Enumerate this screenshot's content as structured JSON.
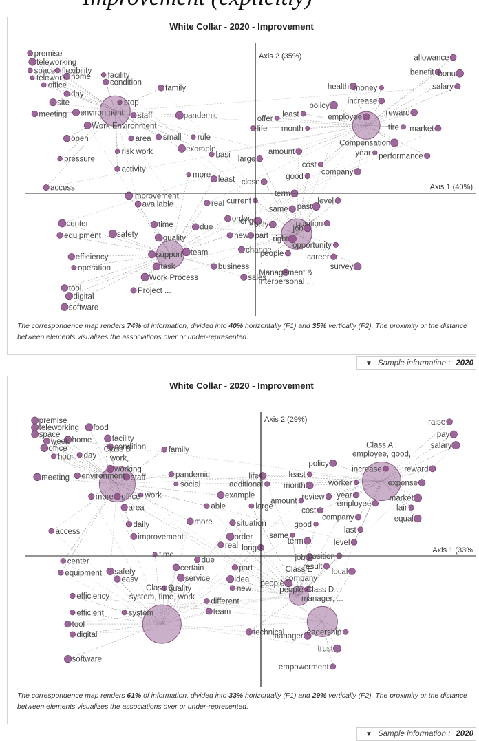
{
  "header_fragment": "Improvement (explicitly)",
  "panels": [
    {
      "caption": {
        "pre": "The correspondence map renders ",
        "total": "74%",
        "mid1": " of information, divided into ",
        "h": "40%",
        "mid2": " horizontally (F1) and ",
        "v": "35%",
        "post": " vertically (F2). The proximity or the distance between elements visualizes the associations over or under-represented."
      },
      "sample": {
        "label": "Sample information :",
        "value": "2020"
      }
    },
    {
      "caption": {
        "pre": "The correspondence map renders ",
        "total": "61%",
        "mid1": " of information, divided into ",
        "h": "33%",
        "mid2": " horizontally (F1) and ",
        "v": "29%",
        "post": " vertically (F2). The proximity or the distance between elements visualizes the associations over or under-represented."
      },
      "sample": {
        "label": "Sample information :",
        "value": "2020"
      }
    }
  ],
  "chart_data": [
    {
      "type": "scatter",
      "title": "White Collar - 2020 - Improvement",
      "xlabel": "Axis 1 (40%)",
      "ylabel": "Axis 2 (35%)",
      "xlim": [
        -1,
        1
      ],
      "ylim": [
        -1,
        1
      ],
      "grid": false,
      "classes": [
        {
          "label": "",
          "x": -0.61,
          "y": 0.57,
          "r": 22
        },
        {
          "label": "",
          "x": 0.51,
          "y": 0.47,
          "r": 20
        },
        {
          "label": "",
          "x": 0.19,
          "y": -0.34,
          "r": 22
        },
        {
          "label": "",
          "x": -0.37,
          "y": -0.51,
          "r": 20
        }
      ],
      "terms": [
        {
          "label": "premise",
          "x": -0.98,
          "y": 0.97
        },
        {
          "label": "teleworking",
          "x": -0.97,
          "y": 0.91
        },
        {
          "label": "space",
          "x": -0.98,
          "y": 0.85
        },
        {
          "label": "flexibility",
          "x": -0.86,
          "y": 0.85
        },
        {
          "label": "telework",
          "x": -0.97,
          "y": 0.8
        },
        {
          "label": "home",
          "x": -0.82,
          "y": 0.81
        },
        {
          "label": "facility",
          "x": -0.66,
          "y": 0.82
        },
        {
          "label": "condition",
          "x": -0.65,
          "y": 0.77
        },
        {
          "label": "office",
          "x": -0.92,
          "y": 0.75
        },
        {
          "label": "family",
          "x": -0.41,
          "y": 0.73
        },
        {
          "label": "day",
          "x": -0.82,
          "y": 0.69
        },
        {
          "label": "stop",
          "x": -0.59,
          "y": 0.63
        },
        {
          "label": "site",
          "x": -0.88,
          "y": 0.63
        },
        {
          "label": "meeting",
          "x": -0.96,
          "y": 0.55
        },
        {
          "label": "environment",
          "x": -0.78,
          "y": 0.56
        },
        {
          "label": "staff",
          "x": -0.53,
          "y": 0.54
        },
        {
          "label": "pandemic",
          "x": -0.33,
          "y": 0.54
        },
        {
          "label": "Work Environment",
          "x": -0.73,
          "y": 0.47
        },
        {
          "label": "open",
          "x": -0.82,
          "y": 0.38
        },
        {
          "label": "area",
          "x": -0.54,
          "y": 0.38
        },
        {
          "label": "small",
          "x": -0.42,
          "y": 0.39
        },
        {
          "label": "rule",
          "x": -0.27,
          "y": 0.39
        },
        {
          "label": "example",
          "x": -0.32,
          "y": 0.31
        },
        {
          "label": "risk work",
          "x": -0.6,
          "y": 0.29
        },
        {
          "label": "pressure",
          "x": -0.85,
          "y": 0.24
        },
        {
          "label": "basi",
          "x": -0.19,
          "y": 0.27
        },
        {
          "label": "activity",
          "x": -0.6,
          "y": 0.17
        },
        {
          "label": "more",
          "x": -0.29,
          "y": 0.13
        },
        {
          "label": "least",
          "x": -0.18,
          "y": 0.1
        },
        {
          "label": "large",
          "x": 0.02,
          "y": 0.24
        },
        {
          "label": "access",
          "x": -0.91,
          "y": 0.04
        },
        {
          "label": "close",
          "x": 0.04,
          "y": 0.08
        },
        {
          "label": "improvement",
          "x": -0.55,
          "y": -0.02
        },
        {
          "label": "available",
          "x": -0.51,
          "y": -0.09
        },
        {
          "label": "real",
          "x": -0.21,
          "y": -0.08
        },
        {
          "label": "current",
          "x": 0.0,
          "y": -0.06
        },
        {
          "label": "center",
          "x": -0.84,
          "y": -0.25
        },
        {
          "label": "time",
          "x": -0.44,
          "y": -0.26
        },
        {
          "label": "order",
          "x": -0.12,
          "y": -0.21
        },
        {
          "label": "long",
          "x": 0.01,
          "y": -0.23
        },
        {
          "label": "due",
          "x": -0.26,
          "y": -0.28
        },
        {
          "label": "equipment",
          "x": -0.85,
          "y": -0.35
        },
        {
          "label": "safety",
          "x": -0.62,
          "y": -0.34
        },
        {
          "label": "quality",
          "x": -0.42,
          "y": -0.37
        },
        {
          "label": "new",
          "x": -0.11,
          "y": -0.35
        },
        {
          "label": "part",
          "x": -0.02,
          "y": -0.35
        },
        {
          "label": "only",
          "x": 0.08,
          "y": -0.26
        },
        {
          "label": "support",
          "x": -0.45,
          "y": -0.51
        },
        {
          "label": "team",
          "x": -0.3,
          "y": -0.49
        },
        {
          "label": "change",
          "x": -0.06,
          "y": -0.47
        },
        {
          "label": "right",
          "x": 0.17,
          "y": -0.38
        },
        {
          "label": "efficiency",
          "x": -0.8,
          "y": -0.53
        },
        {
          "label": "task",
          "x": -0.43,
          "y": -0.61
        },
        {
          "label": "business",
          "x": -0.18,
          "y": -0.61
        },
        {
          "label": "operation",
          "x": -0.79,
          "y": -0.62
        },
        {
          "label": "Work Process",
          "x": -0.48,
          "y": -0.7
        },
        {
          "label": "sales",
          "x": -0.05,
          "y": -0.7
        },
        {
          "label": "tool",
          "x": -0.83,
          "y": -0.79
        },
        {
          "label": "Project ...",
          "x": -0.53,
          "y": -0.81
        },
        {
          "label": "digital",
          "x": -0.81,
          "y": -0.86
        },
        {
          "label": "software",
          "x": -0.83,
          "y": -0.95
        },
        {
          "label": "allowance",
          "x": 0.91,
          "y": 0.94
        },
        {
          "label": "benefit",
          "x": 0.84,
          "y": 0.84
        },
        {
          "label": "bonu",
          "x": 0.94,
          "y": 0.83
        },
        {
          "label": "health",
          "x": 0.45,
          "y": 0.74
        },
        {
          "label": "money",
          "x": 0.58,
          "y": 0.73
        },
        {
          "label": "salary",
          "x": 0.93,
          "y": 0.74
        },
        {
          "label": "increase",
          "x": 0.58,
          "y": 0.64
        },
        {
          "label": "policy",
          "x": 0.36,
          "y": 0.61
        },
        {
          "label": "reward",
          "x": 0.73,
          "y": 0.56
        },
        {
          "label": "least",
          "x": 0.22,
          "y": 0.55
        },
        {
          "label": "employee",
          "x": 0.51,
          "y": 0.53
        },
        {
          "label": "offer",
          "x": 0.1,
          "y": 0.52
        },
        {
          "label": "tire",
          "x": 0.68,
          "y": 0.46
        },
        {
          "label": "market",
          "x": 0.84,
          "y": 0.45
        },
        {
          "label": "life",
          "x": -0.01,
          "y": 0.45
        },
        {
          "label": "month",
          "x": 0.24,
          "y": 0.45
        },
        {
          "label": "Compensation",
          "x": 0.64,
          "y": 0.35
        },
        {
          "label": "amount",
          "x": 0.2,
          "y": 0.29
        },
        {
          "label": "year",
          "x": 0.55,
          "y": 0.28
        },
        {
          "label": "performance",
          "x": 0.79,
          "y": 0.26
        },
        {
          "label": "cost",
          "x": 0.3,
          "y": 0.2
        },
        {
          "label": "company",
          "x": 0.47,
          "y": 0.15
        },
        {
          "label": "good",
          "x": 0.24,
          "y": 0.12
        },
        {
          "label": "term",
          "x": 0.18,
          "y": 0.0
        },
        {
          "label": "level",
          "x": 0.38,
          "y": -0.06
        },
        {
          "label": "past",
          "x": 0.28,
          "y": -0.11
        },
        {
          "label": "same",
          "x": 0.17,
          "y": -0.13
        },
        {
          "label": "position",
          "x": 0.33,
          "y": -0.25
        },
        {
          "label": "job",
          "x": 0.24,
          "y": -0.29
        },
        {
          "label": "opportunity",
          "x": 0.37,
          "y": -0.43
        },
        {
          "label": "people",
          "x": 0.15,
          "y": -0.5
        },
        {
          "label": "career",
          "x": 0.36,
          "y": -0.53
        },
        {
          "label": "survey",
          "x": 0.47,
          "y": -0.61
        },
        {
          "label": "Management & Interpersonal ...",
          "x": 0.14,
          "y": -0.66
        }
      ]
    },
    {
      "type": "scatter",
      "title": "White Collar - 2020 - Improvement",
      "xlabel": "Axis 1 (33%",
      "ylabel": "Axis 2 (29%)",
      "xlim": [
        -1,
        1
      ],
      "ylim": [
        -1,
        1
      ],
      "grid": false,
      "classes": [
        {
          "label": "Class B : work,",
          "x": -0.61,
          "y": 0.52,
          "r": 26
        },
        {
          "label": "Class A : employee, good,",
          "x": 0.57,
          "y": 0.54,
          "r": 28
        },
        {
          "label": "Class C : system, time, work",
          "x": -0.42,
          "y": -0.53,
          "r": 28
        },
        {
          "label": "Class D : manager, ...",
          "x": 0.29,
          "y": -0.51,
          "r": 22
        },
        {
          "label": "Class E : company",
          "x": 0.18,
          "y": -0.31,
          "r": 14
        }
      ],
      "terms": [
        {
          "label": "premise",
          "x": -0.96,
          "y": 0.98
        },
        {
          "label": "teleworking",
          "x": -0.96,
          "y": 0.93
        },
        {
          "label": "food",
          "x": -0.73,
          "y": 0.93
        },
        {
          "label": "space",
          "x": -0.96,
          "y": 0.88
        },
        {
          "label": "week",
          "x": -0.91,
          "y": 0.83
        },
        {
          "label": "home",
          "x": -0.82,
          "y": 0.84
        },
        {
          "label": "facility",
          "x": -0.65,
          "y": 0.85
        },
        {
          "label": "office",
          "x": -0.92,
          "y": 0.78
        },
        {
          "label": "condition",
          "x": -0.64,
          "y": 0.79
        },
        {
          "label": "family",
          "x": -0.41,
          "y": 0.77
        },
        {
          "label": "hour",
          "x": -0.88,
          "y": 0.72
        },
        {
          "label": "day",
          "x": -0.77,
          "y": 0.73
        },
        {
          "label": "working",
          "x": -0.64,
          "y": 0.63
        },
        {
          "label": "meeting",
          "x": -0.95,
          "y": 0.57
        },
        {
          "label": "environment",
          "x": -0.78,
          "y": 0.58
        },
        {
          "label": "staff",
          "x": -0.57,
          "y": 0.57
        },
        {
          "label": "pandemic",
          "x": -0.38,
          "y": 0.59
        },
        {
          "label": "life",
          "x": 0.01,
          "y": 0.58
        },
        {
          "label": "least",
          "x": 0.23,
          "y": 0.59
        },
        {
          "label": "social",
          "x": -0.36,
          "y": 0.52
        },
        {
          "label": "additional",
          "x": 0.03,
          "y": 0.52
        },
        {
          "label": "month",
          "x": 0.23,
          "y": 0.51
        },
        {
          "label": "more",
          "x": -0.72,
          "y": 0.43
        },
        {
          "label": "office",
          "x": -0.61,
          "y": 0.43
        },
        {
          "label": "work",
          "x": -0.51,
          "y": 0.44
        },
        {
          "label": "example",
          "x": -0.17,
          "y": 0.44
        },
        {
          "label": "amount",
          "x": 0.19,
          "y": 0.4
        },
        {
          "label": "review",
          "x": 0.32,
          "y": 0.43
        },
        {
          "label": "area",
          "x": -0.58,
          "y": 0.35
        },
        {
          "label": "able",
          "x": -0.23,
          "y": 0.36
        },
        {
          "label": "large",
          "x": -0.04,
          "y": 0.36
        },
        {
          "label": "cost",
          "x": 0.28,
          "y": 0.33
        },
        {
          "label": "daily",
          "x": -0.56,
          "y": 0.23
        },
        {
          "label": "more",
          "x": -0.3,
          "y": 0.25
        },
        {
          "label": "situation",
          "x": -0.12,
          "y": 0.24
        },
        {
          "label": "good",
          "x": 0.26,
          "y": 0.23
        },
        {
          "label": "company",
          "x": 0.46,
          "y": 0.28
        },
        {
          "label": "access",
          "x": -0.89,
          "y": 0.18
        },
        {
          "label": "improvement",
          "x": -0.54,
          "y": 0.14
        },
        {
          "label": "order",
          "x": -0.13,
          "y": 0.14
        },
        {
          "label": "same",
          "x": 0.15,
          "y": 0.15
        },
        {
          "label": "last",
          "x": 0.47,
          "y": 0.19
        },
        {
          "label": "real",
          "x": -0.17,
          "y": 0.08
        },
        {
          "label": "long",
          "x": 0.0,
          "y": 0.06
        },
        {
          "label": "term",
          "x": 0.22,
          "y": 0.11
        },
        {
          "label": "level",
          "x": 0.44,
          "y": 0.1
        },
        {
          "label": "time",
          "x": -0.45,
          "y": 0.01
        },
        {
          "label": "center",
          "x": -0.84,
          "y": -0.04
        },
        {
          "label": "due",
          "x": -0.27,
          "y": -0.03
        },
        {
          "label": "job",
          "x": 0.23,
          "y": -0.01
        },
        {
          "label": "position",
          "x": 0.37,
          "y": 0.0
        },
        {
          "label": "certain",
          "x": -0.36,
          "y": -0.09
        },
        {
          "label": "part",
          "x": -0.11,
          "y": -0.09
        },
        {
          "label": "result",
          "x": 0.31,
          "y": -0.08
        },
        {
          "label": "local",
          "x": 0.43,
          "y": -0.12
        },
        {
          "label": "equipment",
          "x": -0.85,
          "y": -0.13
        },
        {
          "label": "safety",
          "x": -0.64,
          "y": -0.12
        },
        {
          "label": "service",
          "x": -0.34,
          "y": -0.17
        },
        {
          "label": "idea",
          "x": -0.13,
          "y": -0.18
        },
        {
          "label": "people",
          "x": 0.13,
          "y": -0.21
        },
        {
          "label": "easy",
          "x": -0.61,
          "y": -0.18
        },
        {
          "label": "quality",
          "x": -0.41,
          "y": -0.25
        },
        {
          "label": "new",
          "x": -0.12,
          "y": -0.25
        },
        {
          "label": "people",
          "x": 0.22,
          "y": -0.26
        },
        {
          "label": "different",
          "x": -0.23,
          "y": -0.35
        },
        {
          "label": "efficiency",
          "x": -0.8,
          "y": -0.31
        },
        {
          "label": "team",
          "x": -0.22,
          "y": -0.43
        },
        {
          "label": "efficient",
          "x": -0.8,
          "y": -0.44
        },
        {
          "label": "system",
          "x": -0.58,
          "y": -0.44
        },
        {
          "label": "tool",
          "x": -0.82,
          "y": -0.53
        },
        {
          "label": "digital",
          "x": -0.8,
          "y": -0.61
        },
        {
          "label": "technical",
          "x": -0.05,
          "y": -0.59
        },
        {
          "label": "manager",
          "x": 0.22,
          "y": -0.62
        },
        {
          "label": "leadership",
          "x": 0.4,
          "y": -0.59
        },
        {
          "label": "trust",
          "x": 0.36,
          "y": -0.72
        },
        {
          "label": "software",
          "x": -0.82,
          "y": -0.8
        },
        {
          "label": "empowerment",
          "x": 0.34,
          "y": -0.86
        },
        {
          "label": "raise",
          "x": 0.89,
          "y": 0.97
        },
        {
          "label": "pay",
          "x": 0.91,
          "y": 0.88
        },
        {
          "label": "salary",
          "x": 0.92,
          "y": 0.8
        },
        {
          "label": "policy",
          "x": 0.34,
          "y": 0.67
        },
        {
          "label": "increase",
          "x": 0.59,
          "y": 0.63
        },
        {
          "label": "reward",
          "x": 0.81,
          "y": 0.63
        },
        {
          "label": "worker",
          "x": 0.45,
          "y": 0.53
        },
        {
          "label": "expense",
          "x": 0.76,
          "y": 0.53
        },
        {
          "label": "year",
          "x": 0.45,
          "y": 0.44
        },
        {
          "label": "market",
          "x": 0.74,
          "y": 0.42
        },
        {
          "label": "employee",
          "x": 0.54,
          "y": 0.38
        },
        {
          "label": "fair",
          "x": 0.71,
          "y": 0.35
        },
        {
          "label": "equal",
          "x": 0.74,
          "y": 0.27
        }
      ]
    }
  ]
}
